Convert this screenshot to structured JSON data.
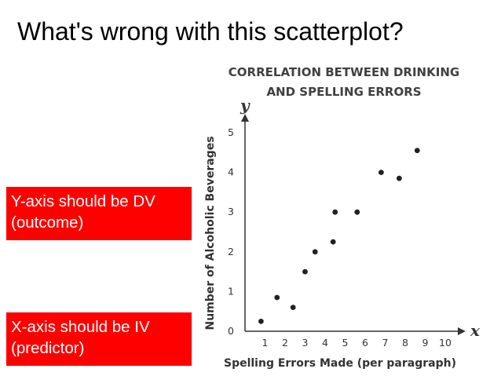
{
  "slide": {
    "title": "What's wrong with this scatterplot?",
    "callout_y": "Y-axis should be DV (outcome)",
    "callout_x": "X-axis should be IV (predictor)",
    "callout_color": "#ff0000"
  },
  "chart_data": {
    "type": "scatter",
    "title_lines": [
      "CORRELATION BETWEEN DRINKING",
      "AND SPELLING ERRORS"
    ],
    "xlabel": "Spelling Errors Made (per paragraph)",
    "ylabel": "Number of Alcoholic Beverages",
    "x_axis_letter": "x",
    "y_axis_letter": "y",
    "xlim": [
      0,
      10
    ],
    "ylim": [
      0,
      5
    ],
    "x_ticks": [
      1,
      2,
      3,
      4,
      5,
      6,
      7,
      8,
      9,
      10
    ],
    "y_ticks": [
      0,
      1,
      2,
      3,
      4,
      5
    ],
    "grid": false,
    "point_color": "#222222",
    "points": [
      {
        "x": 0.8,
        "y": 0.25
      },
      {
        "x": 1.6,
        "y": 0.85
      },
      {
        "x": 2.4,
        "y": 0.6
      },
      {
        "x": 3.0,
        "y": 1.5
      },
      {
        "x": 3.5,
        "y": 2.0
      },
      {
        "x": 4.4,
        "y": 2.25
      },
      {
        "x": 4.5,
        "y": 3.0
      },
      {
        "x": 5.6,
        "y": 3.0
      },
      {
        "x": 6.8,
        "y": 4.0
      },
      {
        "x": 7.7,
        "y": 3.85
      },
      {
        "x": 8.6,
        "y": 4.55
      }
    ]
  }
}
